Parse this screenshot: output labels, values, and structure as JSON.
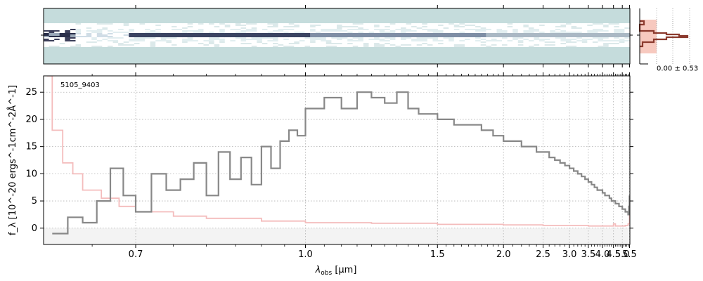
{
  "chart_data": [
    {
      "type": "heatmap",
      "panel": "2d-spectrum",
      "colormap": [
        "#ffffff",
        "#c5dcdc",
        "#8fa3b3",
        "#2a2f4a"
      ],
      "background": "#c5dcdc"
    },
    {
      "type": "line",
      "panel": "spatial-profile",
      "annotation": "0.00 ± 0.53",
      "fill_color": "#f7c9bf",
      "line_color": "#8b3a2e"
    },
    {
      "type": "line",
      "panel": "1d-spectrum",
      "object_label": "5105_9403",
      "xlabel_main": "λ",
      "xlabel_sub": "obs",
      "xlabel_unit": " [μm]",
      "ylabel": "f_λ [10^-20 ergs^-1cm^-2Å^-1]",
      "xscale": "reciprocal",
      "xlim": [
        0.602,
        5.53
      ],
      "ylim": [
        -3,
        28
      ],
      "grid": true,
      "xticks": [
        0.7,
        1.0,
        1.5,
        2.0,
        2.5,
        3.0,
        3.5,
        4.0,
        4.5,
        5.0,
        5.5
      ],
      "xtick_labels": [
        "0.7",
        "1.0",
        "1.5",
        "2.0",
        "2.5",
        "3.0",
        "3.5",
        "4.0",
        "4.5",
        "5.0",
        "5.5"
      ],
      "yticks": [
        0,
        5,
        10,
        15,
        20,
        25
      ],
      "ytick_labels": [
        "0",
        "5",
        "10",
        "15",
        "20",
        "25"
      ],
      "series": [
        {
          "color": "#888888",
          "x": [
            0.61,
            0.625,
            0.64,
            0.655,
            0.67,
            0.685,
            0.7,
            0.72,
            0.74,
            0.76,
            0.78,
            0.8,
            0.82,
            0.84,
            0.86,
            0.88,
            0.9,
            0.92,
            0.94,
            0.96,
            0.98,
            1.0,
            1.05,
            1.1,
            1.15,
            1.2,
            1.25,
            1.3,
            1.35,
            1.4,
            1.45,
            1.5,
            1.6,
            1.7,
            1.8,
            1.9,
            2.0,
            2.1,
            2.2,
            2.3,
            2.4,
            2.5,
            2.6,
            2.7,
            2.8,
            2.9,
            3.0,
            3.1,
            3.2,
            3.3,
            3.4,
            3.5,
            3.6,
            3.7,
            3.8,
            3.9,
            4.0,
            4.1,
            4.2,
            4.3,
            4.4,
            4.5,
            4.6,
            4.7,
            4.8,
            4.9,
            5.0,
            5.1,
            5.2,
            5.3,
            5.4,
            5.45,
            5.5
          ],
          "y": [
            -1,
            2,
            1,
            5,
            11,
            6,
            3,
            10,
            7,
            9,
            12,
            6,
            14,
            9,
            13,
            8,
            15,
            11,
            16,
            18,
            17,
            22,
            24,
            22,
            25,
            24,
            23,
            25,
            22,
            21,
            21,
            20,
            19,
            19,
            18,
            17,
            16,
            16,
            15,
            15,
            14,
            14,
            13,
            12.5,
            12,
            11.5,
            11,
            10.5,
            10,
            9.5,
            9,
            8.5,
            8,
            7.5,
            7,
            7,
            6.5,
            6,
            6,
            5.5,
            5,
            5,
            4.5,
            4.5,
            4,
            4,
            3.5,
            3.5,
            3,
            3,
            2.5,
            4,
            6
          ]
        },
        {
          "color": "#f4bcbc",
          "x": [
            0.605,
            0.61,
            0.62,
            0.63,
            0.64,
            0.66,
            0.68,
            0.7,
            0.75,
            0.8,
            0.9,
            1.0,
            1.2,
            1.5,
            2.0,
            2.5,
            3.0,
            3.5,
            4.0,
            4.4,
            4.5,
            4.6,
            5.0,
            5.2,
            5.4,
            5.5
          ],
          "y": [
            28,
            18,
            12,
            10,
            7,
            5.5,
            4,
            3,
            2.2,
            1.8,
            1.3,
            1.0,
            0.9,
            0.7,
            0.6,
            0.5,
            0.5,
            0.4,
            0.4,
            0.4,
            0.8,
            0.4,
            0.4,
            0.5,
            0.8,
            2.5
          ]
        }
      ]
    }
  ]
}
